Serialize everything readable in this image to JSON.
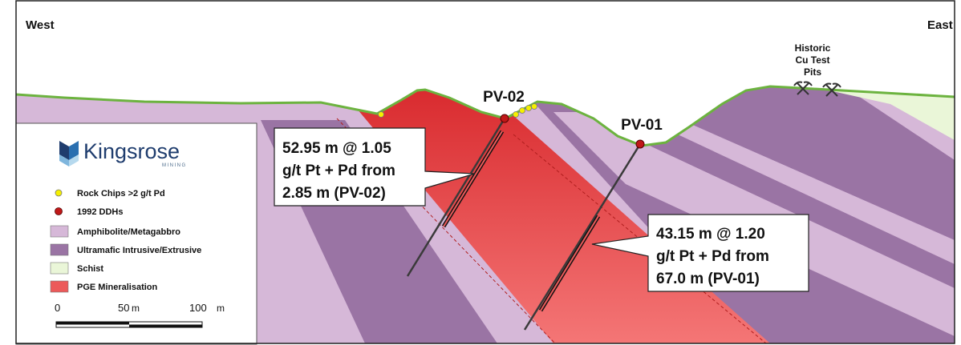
{
  "section": {
    "west_label": "West",
    "east_label": "East",
    "historic_label": [
      "Historic",
      "Cu Test",
      "Pits"
    ]
  },
  "holes": [
    {
      "name": "PV-02"
    },
    {
      "name": "PV-01"
    }
  ],
  "callouts": [
    {
      "lines": [
        "52.95 m @ 1.05",
        "g/t Pt + Pd from",
        "2.85 m (PV-02)"
      ]
    },
    {
      "lines": [
        "43.15 m @ 1.20",
        "g/t Pt + Pd from",
        "67.0 m (PV-01)"
      ]
    }
  ],
  "legend": {
    "brand_name": "Kingsrose",
    "brand_sub": "MINING",
    "items": [
      {
        "label": "Rock Chips >2 g/t Pd",
        "symbol": "dot",
        "color": "#f5f000"
      },
      {
        "label": "1992 DDHs",
        "symbol": "dot",
        "color": "#c01818"
      },
      {
        "label": "Amphibolite/Metagabbro",
        "symbol": "box",
        "color": "#d6b8d8"
      },
      {
        "label": "Ultramafic Intrusive/Extrusive",
        "symbol": "box",
        "color": "#9a74a4"
      },
      {
        "label": "Schist",
        "symbol": "box",
        "color": "#eaf6d8"
      },
      {
        "label": "PGE Mineralisation",
        "symbol": "box",
        "color": "#ec5a5a"
      }
    ],
    "scale": {
      "labels": [
        "0",
        "50",
        "m",
        "100",
        "m"
      ]
    }
  },
  "colors": {
    "amphibolite": "#d6b8d8",
    "ultramafic": "#9a74a4",
    "schist": "#eaf6d8",
    "mineralisation": "#ec5a5a",
    "surface": "#6cb33f",
    "drillhole": "#3a3a3a",
    "collar": "#c01818",
    "rock_chip": "#f5f000",
    "brand": "#1f3d6e"
  }
}
